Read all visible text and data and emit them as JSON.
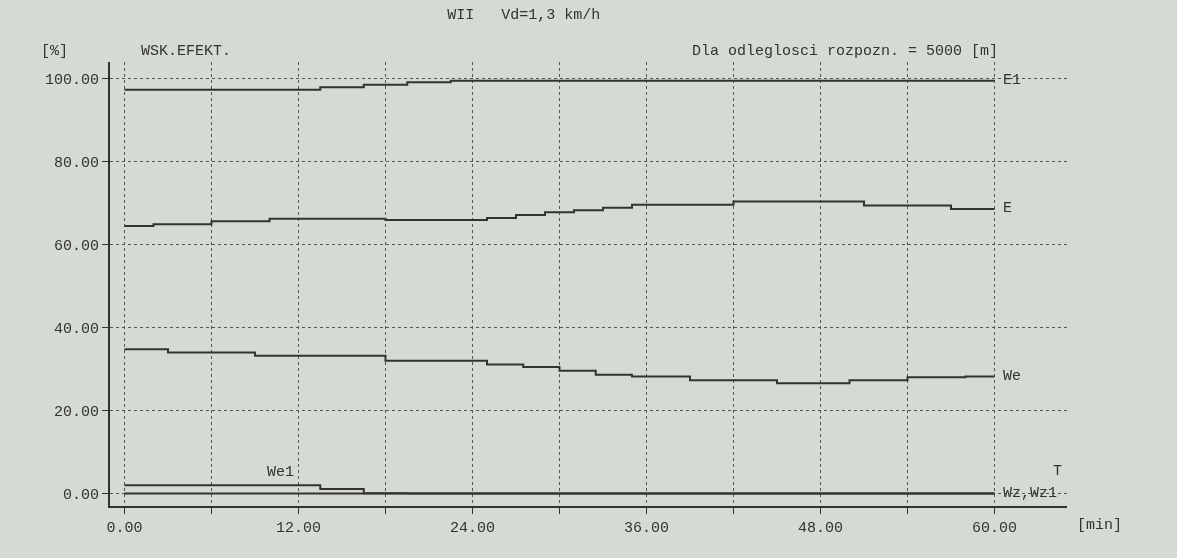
{
  "chart_data": {
    "type": "step",
    "title": "WII   Vd=1,3 km/h",
    "subtitle": "Dla odleglosci rozpozn. = 5000 [m]",
    "ylabel": "[%]",
    "xlabel": "T",
    "annotations": [
      "WSK.EFEKT.",
      "[min]"
    ],
    "xlim": [
      -1,
      65
    ],
    "ylim": [
      -3,
      104
    ],
    "xticks": [
      {
        "value": 0,
        "label": "0.00"
      },
      {
        "value": 6,
        "label": null
      },
      {
        "value": 12,
        "label": "12.00"
      },
      {
        "value": 18,
        "label": null
      },
      {
        "value": 24,
        "label": "24.00"
      },
      {
        "value": 30,
        "label": null
      },
      {
        "value": 36,
        "label": "36.00"
      },
      {
        "value": 42,
        "label": null
      },
      {
        "value": 48,
        "label": "48.00"
      },
      {
        "value": 54,
        "label": null
      },
      {
        "value": 60,
        "label": "60.00"
      }
    ],
    "yticks": [
      {
        "value": 0,
        "label": "0.00"
      },
      {
        "value": 20,
        "label": "20.00"
      },
      {
        "value": 40,
        "label": "40.00"
      },
      {
        "value": 60,
        "label": "60.00"
      },
      {
        "value": 80,
        "label": "80.00"
      },
      {
        "value": 100,
        "label": "100.00"
      }
    ],
    "grid": true,
    "legend": false,
    "marker": "none",
    "line_style": "solid",
    "series": [
      {
        "name": "E1",
        "color": "#333333",
        "x": [
          0,
          13.5,
          16.5,
          19.5,
          22.5,
          60
        ],
        "values": [
          97.3,
          97.9,
          98.5,
          99.1,
          99.5,
          99.5
        ]
      },
      {
        "name": "E",
        "color": "#333333",
        "x": [
          0,
          2,
          6,
          10,
          18,
          25,
          27,
          29,
          31,
          33,
          35,
          42,
          51,
          57,
          60
        ],
        "values": [
          64.5,
          64.9,
          65.6,
          66.2,
          65.9,
          66.4,
          67.1,
          67.8,
          68.3,
          68.9,
          69.6,
          70.4,
          69.4,
          68.6,
          68.6
        ]
      },
      {
        "name": "We",
        "color": "#333333",
        "x": [
          0,
          3,
          9,
          18,
          25,
          27.5,
          30,
          32.5,
          35,
          39,
          45,
          50,
          54,
          58,
          60
        ],
        "values": [
          34.8,
          34.0,
          33.2,
          32.0,
          31.1,
          30.5,
          29.6,
          28.6,
          28.2,
          27.3,
          26.6,
          27.3,
          28.0,
          28.2,
          28.2
        ]
      },
      {
        "name": "Wz,Wz1",
        "color": "#333333",
        "x": [
          0,
          60
        ],
        "values": [
          0,
          0
        ]
      },
      {
        "name": "We1",
        "color": "#333333",
        "x": [
          0,
          13.5,
          16.5,
          19.5,
          22.5,
          60
        ],
        "values": [
          2.0,
          1.1,
          0.1,
          0,
          0,
          0
        ]
      }
    ]
  }
}
